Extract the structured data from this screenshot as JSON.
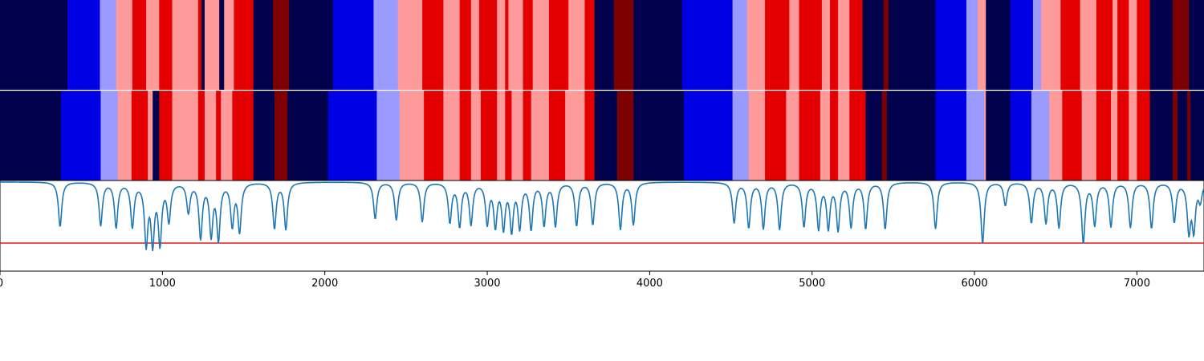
{
  "chart_data": [
    {
      "type": "heatmap",
      "title": "",
      "xlim": [
        0,
        7413
      ],
      "colormap": [
        "#00004c",
        "#0000e4",
        "#9a9aff",
        "#ff9a9a",
        "#e40000",
        "#7f0000"
      ],
      "segments": [
        [
          0,
          415,
          0
        ],
        [
          415,
          615,
          1
        ],
        [
          615,
          715,
          2
        ],
        [
          715,
          815,
          3
        ],
        [
          815,
          900,
          4
        ],
        [
          900,
          980,
          3
        ],
        [
          980,
          1060,
          4
        ],
        [
          1060,
          1220,
          3
        ],
        [
          1220,
          1240,
          4
        ],
        [
          1240,
          1260,
          0
        ],
        [
          1260,
          1350,
          3
        ],
        [
          1350,
          1380,
          0
        ],
        [
          1380,
          1440,
          3
        ],
        [
          1440,
          1560,
          4
        ],
        [
          1560,
          1680,
          0
        ],
        [
          1680,
          1780,
          5
        ],
        [
          1780,
          2050,
          0
        ],
        [
          2050,
          2300,
          1
        ],
        [
          2300,
          2450,
          2
        ],
        [
          2450,
          2600,
          3
        ],
        [
          2600,
          2730,
          4
        ],
        [
          2730,
          2830,
          3
        ],
        [
          2830,
          2900,
          4
        ],
        [
          2900,
          2950,
          3
        ],
        [
          2950,
          3060,
          4
        ],
        [
          3060,
          3110,
          3
        ],
        [
          3110,
          3130,
          4
        ],
        [
          3130,
          3220,
          3
        ],
        [
          3220,
          3280,
          4
        ],
        [
          3280,
          3380,
          3
        ],
        [
          3380,
          3500,
          4
        ],
        [
          3500,
          3600,
          3
        ],
        [
          3600,
          3660,
          4
        ],
        [
          3660,
          3780,
          0
        ],
        [
          3780,
          3900,
          5
        ],
        [
          3900,
          4200,
          0
        ],
        [
          4200,
          4510,
          1
        ],
        [
          4510,
          4600,
          2
        ],
        [
          4600,
          4710,
          3
        ],
        [
          4710,
          4860,
          4
        ],
        [
          4860,
          4920,
          3
        ],
        [
          4920,
          5060,
          4
        ],
        [
          5060,
          5110,
          3
        ],
        [
          5110,
          5160,
          4
        ],
        [
          5160,
          5230,
          3
        ],
        [
          5230,
          5310,
          4
        ],
        [
          5310,
          5440,
          0
        ],
        [
          5440,
          5470,
          5
        ],
        [
          5470,
          5760,
          0
        ],
        [
          5760,
          5950,
          1
        ],
        [
          5950,
          6020,
          2
        ],
        [
          6020,
          6070,
          3
        ],
        [
          6070,
          6220,
          0
        ],
        [
          6220,
          6360,
          1
        ],
        [
          6360,
          6410,
          2
        ],
        [
          6410,
          6530,
          3
        ],
        [
          6530,
          6650,
          4
        ],
        [
          6650,
          6750,
          3
        ],
        [
          6750,
          6850,
          4
        ],
        [
          6850,
          6880,
          3
        ],
        [
          6880,
          6950,
          4
        ],
        [
          6950,
          7000,
          3
        ],
        [
          7000,
          7080,
          4
        ],
        [
          7080,
          7220,
          0
        ],
        [
          7220,
          7320,
          5
        ],
        [
          7320,
          7413,
          0
        ]
      ]
    },
    {
      "type": "heatmap",
      "title": "",
      "xlim": [
        0,
        7413
      ],
      "colormap": [
        "#00004c",
        "#0000e4",
        "#9a9aff",
        "#ff9a9a",
        "#e40000",
        "#7f0000"
      ],
      "segments": [
        [
          0,
          375,
          0
        ],
        [
          375,
          620,
          1
        ],
        [
          620,
          725,
          2
        ],
        [
          725,
          810,
          3
        ],
        [
          810,
          910,
          4
        ],
        [
          910,
          940,
          3
        ],
        [
          940,
          980,
          0
        ],
        [
          980,
          1060,
          4
        ],
        [
          1060,
          1220,
          3
        ],
        [
          1220,
          1260,
          4
        ],
        [
          1260,
          1330,
          3
        ],
        [
          1330,
          1360,
          4
        ],
        [
          1360,
          1430,
          3
        ],
        [
          1430,
          1560,
          4
        ],
        [
          1560,
          1690,
          0
        ],
        [
          1690,
          1770,
          5
        ],
        [
          1770,
          2020,
          0
        ],
        [
          2020,
          2320,
          1
        ],
        [
          2320,
          2460,
          2
        ],
        [
          2460,
          2610,
          3
        ],
        [
          2610,
          2730,
          4
        ],
        [
          2730,
          2830,
          3
        ],
        [
          2830,
          2900,
          4
        ],
        [
          2900,
          2960,
          3
        ],
        [
          2960,
          3060,
          4
        ],
        [
          3060,
          3110,
          3
        ],
        [
          3110,
          3150,
          4
        ],
        [
          3150,
          3220,
          3
        ],
        [
          3220,
          3270,
          4
        ],
        [
          3270,
          3380,
          3
        ],
        [
          3380,
          3480,
          4
        ],
        [
          3480,
          3600,
          3
        ],
        [
          3600,
          3660,
          4
        ],
        [
          3660,
          3800,
          0
        ],
        [
          3800,
          3900,
          5
        ],
        [
          3900,
          4210,
          0
        ],
        [
          4210,
          4510,
          1
        ],
        [
          4510,
          4610,
          2
        ],
        [
          4610,
          4710,
          3
        ],
        [
          4710,
          4840,
          4
        ],
        [
          4840,
          4920,
          3
        ],
        [
          4920,
          5050,
          4
        ],
        [
          5050,
          5110,
          3
        ],
        [
          5110,
          5160,
          4
        ],
        [
          5160,
          5230,
          3
        ],
        [
          5230,
          5330,
          4
        ],
        [
          5330,
          5430,
          0
        ],
        [
          5430,
          5460,
          5
        ],
        [
          5460,
          5760,
          0
        ],
        [
          5760,
          5950,
          1
        ],
        [
          5950,
          6060,
          2
        ],
        [
          6060,
          6070,
          3
        ],
        [
          6070,
          6220,
          0
        ],
        [
          6220,
          6350,
          1
        ],
        [
          6350,
          6460,
          2
        ],
        [
          6460,
          6540,
          3
        ],
        [
          6540,
          6660,
          4
        ],
        [
          6660,
          6750,
          3
        ],
        [
          6750,
          6840,
          4
        ],
        [
          6840,
          6880,
          3
        ],
        [
          6880,
          6950,
          4
        ],
        [
          6950,
          7000,
          3
        ],
        [
          7000,
          7080,
          4
        ],
        [
          7080,
          7220,
          0
        ],
        [
          7220,
          7250,
          5
        ],
        [
          7250,
          7310,
          0
        ],
        [
          7310,
          7330,
          5
        ],
        [
          7330,
          7413,
          0
        ]
      ]
    },
    {
      "type": "line",
      "title": "",
      "xlabel": "",
      "ylabel": "",
      "xlim": [
        0,
        7413
      ],
      "ylim": [
        0,
        1.0
      ],
      "grid": false,
      "series_color": "#1f77b4",
      "threshold": 0.31,
      "threshold_color": "#e41a1c",
      "x_ticks": [
        "0",
        "1000",
        "2000",
        "3000",
        "4000",
        "5000",
        "6000",
        "7000"
      ],
      "dips": [
        [
          370,
          0.49
        ],
        [
          620,
          0.51
        ],
        [
          715,
          0.49
        ],
        [
          815,
          0.5
        ],
        [
          900,
          0.32
        ],
        [
          940,
          0.34
        ],
        [
          985,
          0.33
        ],
        [
          1040,
          0.57
        ],
        [
          1160,
          0.66
        ],
        [
          1235,
          0.38
        ],
        [
          1300,
          0.42
        ],
        [
          1345,
          0.37
        ],
        [
          1430,
          0.52
        ],
        [
          1475,
          0.45
        ],
        [
          1690,
          0.48
        ],
        [
          1760,
          0.47
        ],
        [
          2310,
          0.58
        ],
        [
          2440,
          0.57
        ],
        [
          2600,
          0.55
        ],
        [
          2770,
          0.55
        ],
        [
          2830,
          0.51
        ],
        [
          2900,
          0.53
        ],
        [
          3000,
          0.54
        ],
        [
          3050,
          0.52
        ],
        [
          3100,
          0.5
        ],
        [
          3150,
          0.47
        ],
        [
          3200,
          0.5
        ],
        [
          3270,
          0.48
        ],
        [
          3350,
          0.52
        ],
        [
          3420,
          0.51
        ],
        [
          3550,
          0.51
        ],
        [
          3650,
          0.52
        ],
        [
          3820,
          0.47
        ],
        [
          3900,
          0.52
        ],
        [
          4520,
          0.54
        ],
        [
          4610,
          0.49
        ],
        [
          4700,
          0.48
        ],
        [
          4800,
          0.47
        ],
        [
          4950,
          0.5
        ],
        [
          5040,
          0.48
        ],
        [
          5100,
          0.49
        ],
        [
          5160,
          0.47
        ],
        [
          5240,
          0.5
        ],
        [
          5330,
          0.48
        ],
        [
          5450,
          0.47
        ],
        [
          5760,
          0.47
        ],
        [
          6050,
          0.31
        ],
        [
          6190,
          0.73
        ],
        [
          6350,
          0.54
        ],
        [
          6440,
          0.54
        ],
        [
          6520,
          0.49
        ],
        [
          6670,
          0.32
        ],
        [
          6740,
          0.52
        ],
        [
          6840,
          0.5
        ],
        [
          6960,
          0.49
        ],
        [
          7090,
          0.48
        ],
        [
          7230,
          0.55
        ],
        [
          7320,
          0.46
        ],
        [
          7350,
          0.48
        ],
        [
          7390,
          0.79
        ]
      ]
    }
  ]
}
